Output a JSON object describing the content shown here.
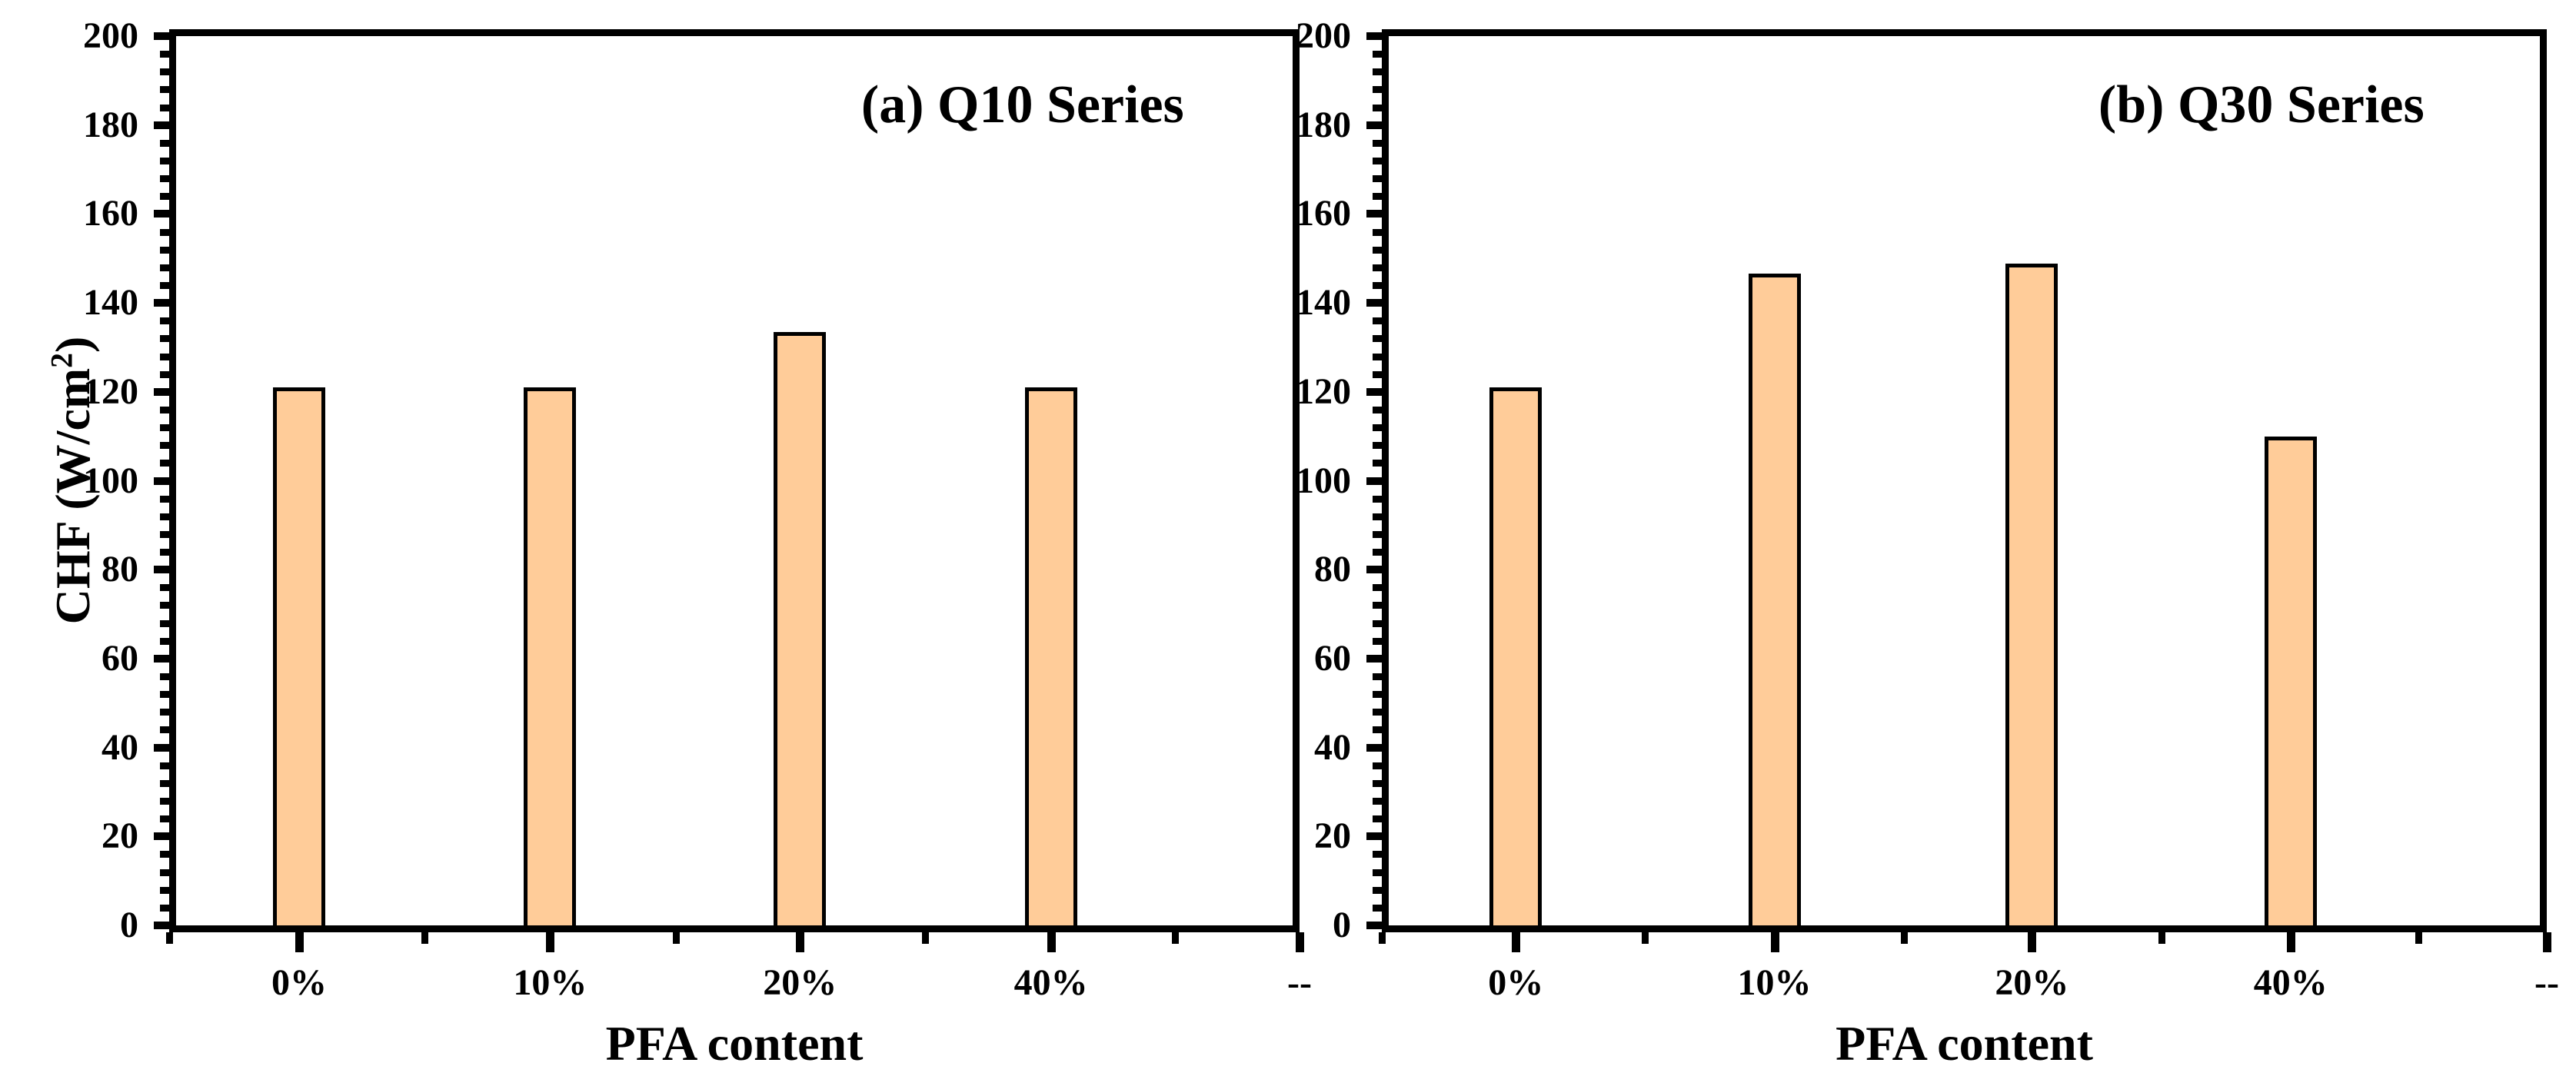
{
  "figure": {
    "background": "#ffffff",
    "ink_color": "#000000"
  },
  "chart_data": [
    {
      "type": "bar",
      "panel_label": "(a) Q10 Series",
      "categories": [
        "0%",
        "10%",
        "20%",
        "40%"
      ],
      "values": [
        121,
        121,
        133.5,
        121
      ],
      "xlabel": "PFA content",
      "ylabel": "CHF (W/cm²)",
      "right_axis_label": "--",
      "ylim": [
        0,
        200
      ],
      "y_ticks": [
        0,
        20,
        40,
        60,
        80,
        100,
        120,
        140,
        160,
        180,
        200
      ],
      "y_minor_step": 4,
      "bar_color": "#FFCC99",
      "bar_border_color": "#000000",
      "grid": "off",
      "legend": "none"
    },
    {
      "type": "bar",
      "panel_label": "(b) Q30 Series",
      "categories": [
        "0%",
        "10%",
        "20%",
        "40%"
      ],
      "values": [
        121,
        146.5,
        148.8,
        110
      ],
      "xlabel": "PFA content",
      "ylabel": "",
      "right_axis_label": "--",
      "ylim": [
        0,
        200
      ],
      "y_ticks": [
        0,
        20,
        40,
        60,
        80,
        100,
        120,
        140,
        160,
        180,
        200
      ],
      "y_minor_step": 4,
      "bar_color": "#FFCC99",
      "bar_border_color": "#000000",
      "grid": "off",
      "legend": "none"
    }
  ]
}
